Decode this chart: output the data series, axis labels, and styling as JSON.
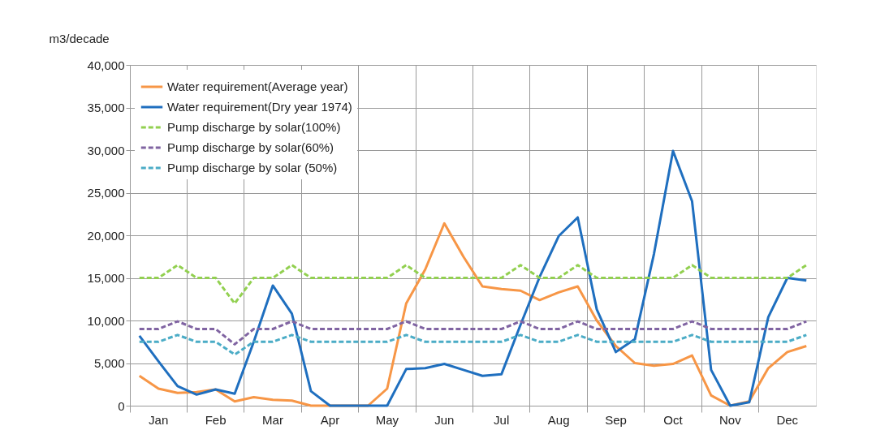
{
  "chart_data": {
    "type": "line",
    "ylabel": "m3/decade",
    "categories": [
      null,
      "Jan",
      null,
      null,
      "Feb",
      null,
      null,
      "Mar",
      null,
      null,
      "Apr",
      null,
      null,
      "May",
      null,
      null,
      "Jun",
      null,
      null,
      "Jul",
      null,
      null,
      "Aug",
      null,
      null,
      "Sep",
      null,
      null,
      "Oct",
      null,
      null,
      "Nov",
      null,
      null,
      "Dec",
      null
    ],
    "ylim": [
      0,
      40000
    ],
    "yticks": [
      {
        "value": 0,
        "label": "0"
      },
      {
        "value": 5000,
        "label": "5,000"
      },
      {
        "value": 10000,
        "label": "10,000"
      },
      {
        "value": 15000,
        "label": "15,000"
      },
      {
        "value": 20000,
        "label": "20,000"
      },
      {
        "value": 25000,
        "label": "25,000"
      },
      {
        "value": 30000,
        "label": "30,000"
      },
      {
        "value": 35000,
        "label": "35,000"
      },
      {
        "value": 40000,
        "label": "40,000"
      }
    ],
    "grid": true,
    "legend": "top left",
    "marker": "none",
    "series": [
      {
        "name": "Water requirement(Average year)",
        "color": "#f79646",
        "line_style": "solid",
        "values": [
          3500,
          2000,
          1500,
          1600,
          1900,
          500,
          1000,
          700,
          600,
          0,
          0,
          0,
          0,
          2000,
          12000,
          16000,
          21400,
          17500,
          14000,
          13700,
          13500,
          12400,
          13300,
          14000,
          10000,
          7000,
          5000,
          4700,
          4900,
          5900,
          1200,
          0,
          500,
          4400,
          6300,
          7000
        ]
      },
      {
        "name": "Water requirement(Dry year 1974)",
        "color": "#1f6fbf",
        "line_style": "solid",
        "values": [
          8200,
          5200,
          2300,
          1300,
          1900,
          1400,
          7500,
          14100,
          10800,
          1700,
          0,
          0,
          0,
          0,
          4300,
          4400,
          4900,
          4200,
          3500,
          3700,
          9500,
          15100,
          19900,
          22100,
          11300,
          6300,
          7800,
          17800,
          29900,
          24000,
          4200,
          0,
          400,
          10400,
          15000,
          14700
        ]
      },
      {
        "name": "Pump discharge by solar(100%)",
        "color": "#92d050",
        "line_style": "dashed",
        "values": [
          15000,
          15000,
          16500,
          15000,
          15000,
          12000,
          15000,
          15000,
          16500,
          15000,
          15000,
          15000,
          15000,
          15000,
          16500,
          15000,
          15000,
          15000,
          15000,
          15000,
          16500,
          15000,
          15000,
          16500,
          15000,
          15000,
          15000,
          15000,
          15000,
          16500,
          15000,
          15000,
          15000,
          15000,
          15000,
          16500
        ]
      },
      {
        "name": "Pump discharge by solar(60%)",
        "color": "#8064a2",
        "line_style": "dashed",
        "values": [
          9000,
          9000,
          9900,
          9000,
          9000,
          7200,
          9000,
          9000,
          9900,
          9000,
          9000,
          9000,
          9000,
          9000,
          9900,
          9000,
          9000,
          9000,
          9000,
          9000,
          9900,
          9000,
          9000,
          9900,
          9000,
          9000,
          9000,
          9000,
          9000,
          9900,
          9000,
          9000,
          9000,
          9000,
          9000,
          9900
        ]
      },
      {
        "name": "Pump discharge by solar (50%)",
        "color": "#4bacc6",
        "line_style": "dashed",
        "values": [
          7500,
          7500,
          8300,
          7500,
          7500,
          6000,
          7500,
          7500,
          8300,
          7500,
          7500,
          7500,
          7500,
          7500,
          8300,
          7500,
          7500,
          7500,
          7500,
          7500,
          8300,
          7500,
          7500,
          8300,
          7500,
          7500,
          7500,
          7500,
          7500,
          8300,
          7500,
          7500,
          7500,
          7500,
          7500,
          8300
        ]
      }
    ]
  }
}
